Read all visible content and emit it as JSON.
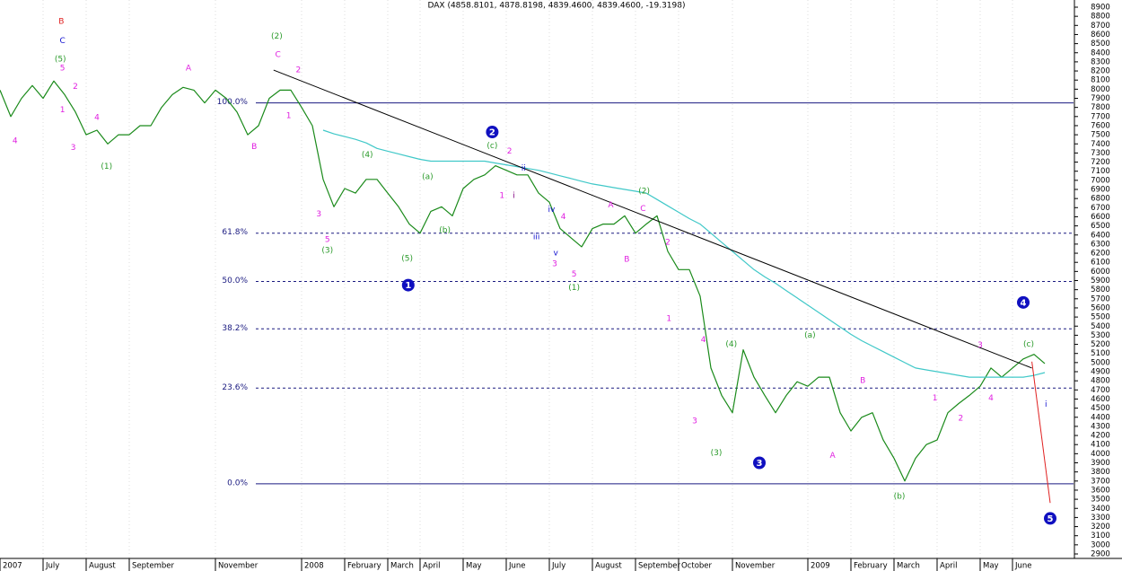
{
  "chart_data": {
    "type": "line",
    "title": "DAX (4858.8101, 4878.8198, 4839.4600, 4839.4600, -19.3198)",
    "categories": [
      "2007",
      null,
      null,
      null,
      "July",
      null,
      null,
      null,
      "August",
      null,
      null,
      null,
      "September",
      null,
      null,
      null,
      null,
      null,
      null,
      null,
      "November",
      null,
      null,
      null,
      null,
      null,
      null,
      null,
      "2008",
      null,
      null,
      null,
      "February",
      null,
      null,
      null,
      "March",
      null,
      null,
      "April",
      null,
      null,
      null,
      "May",
      null,
      null,
      null,
      "June",
      null,
      null,
      null,
      "July",
      null,
      null,
      null,
      "August",
      null,
      null,
      null,
      "September",
      null,
      null,
      null,
      "October",
      null,
      null,
      null,
      null,
      "November",
      null,
      null,
      null,
      null,
      null,
      null,
      "2009",
      null,
      null,
      null,
      "February",
      null,
      null,
      null,
      "March",
      null,
      null,
      null,
      "April",
      null,
      null,
      null,
      "May",
      null,
      null,
      "June",
      null,
      null,
      null
    ],
    "series": [
      {
        "color": "#1a8a1a",
        "values": [
          7990,
          7700,
          7900,
          8040,
          7900,
          8090,
          7940,
          7750,
          7500,
          7550,
          7400,
          7500,
          7500,
          7600,
          7600,
          7800,
          7940,
          8020,
          7990,
          7850,
          7990,
          7900,
          7750,
          7500,
          7600,
          7900,
          7990,
          7990,
          7800,
          7600,
          7010,
          6710,
          6910,
          6860,
          7010,
          7010,
          6860,
          6710,
          6520,
          6420,
          6660,
          6710,
          6610,
          6910,
          7010,
          7060,
          7160,
          7110,
          7060,
          7060,
          6860,
          6760,
          6470,
          6370,
          6270,
          6470,
          6520,
          6520,
          6610,
          6420,
          6520,
          6610,
          6220,
          6020,
          6020,
          5730,
          4940,
          4640,
          4450,
          5140,
          4840,
          4640,
          4450,
          4640,
          4790,
          4740,
          4840,
          4840,
          4450,
          4250,
          4400,
          4450,
          4150,
          3950,
          3700,
          3950,
          4100,
          4150,
          4450,
          4550,
          4640,
          4740,
          4940,
          4840,
          4940,
          5040,
          5090,
          4990
        ]
      },
      {
        "color": "#40c8c8",
        "values": [
          null,
          null,
          null,
          null,
          null,
          null,
          null,
          null,
          null,
          null,
          null,
          null,
          null,
          null,
          null,
          null,
          null,
          null,
          null,
          null,
          null,
          null,
          null,
          null,
          null,
          null,
          null,
          null,
          null,
          null,
          7550,
          7510,
          7480,
          7450,
          7410,
          7350,
          7320,
          7290,
          7260,
          7230,
          7210,
          7210,
          7210,
          7210,
          7210,
          7210,
          7190,
          7170,
          7150,
          7130,
          7110,
          7080,
          7050,
          7020,
          6990,
          6960,
          6940,
          6920,
          6900,
          6880,
          6860,
          6790,
          6720,
          6650,
          6580,
          6520,
          6420,
          6320,
          6220,
          6120,
          6020,
          5940,
          5870,
          5790,
          5710,
          5630,
          5550,
          5470,
          5390,
          5310,
          5240,
          5180,
          5120,
          5060,
          5000,
          4940,
          4920,
          4900,
          4880,
          4860,
          4840,
          4840,
          4840,
          4840,
          4840,
          4840,
          4860,
          4890
        ]
      }
    ],
    "ylim": [
      2900,
      8900
    ],
    "yticks": [
      2900,
      3000,
      3100,
      3200,
      3300,
      3400,
      3500,
      3600,
      3700,
      3800,
      3900,
      4000,
      4100,
      4200,
      4300,
      4400,
      4500,
      4600,
      4700,
      4800,
      4900,
      5000,
      5100,
      5200,
      5300,
      5400,
      5500,
      5600,
      5700,
      5800,
      5900,
      6000,
      6100,
      6200,
      6300,
      6400,
      6500,
      6600,
      6700,
      6800,
      6900,
      7000,
      7100,
      7200,
      7300,
      7400,
      7500,
      7600,
      7700,
      7800,
      7900,
      8000,
      8100,
      8200,
      8300,
      8400,
      8500,
      8600,
      8700,
      8800,
      8900
    ],
    "levels": [
      {
        "label": "100.0%",
        "value": 7850,
        "dashed": false
      },
      {
        "label": "61.8%",
        "value": 6420,
        "dashed": true
      },
      {
        "label": "50.0%",
        "value": 5890,
        "dashed": true
      },
      {
        "label": "38.2%",
        "value": 5370,
        "dashed": true
      },
      {
        "label": "23.6%",
        "value": 4720,
        "dashed": true
      },
      {
        "label": "0.0%",
        "value": 3670,
        "dashed": false
      }
    ],
    "lines": [
      {
        "color": "#000000",
        "x": [
          25.4,
          95.8
        ],
        "y": [
          8210,
          4940
        ]
      },
      {
        "color": "#e02020",
        "x": [
          95.8,
          97.5
        ],
        "y": [
          5010,
          3460
        ]
      }
    ],
    "annotations": [
      {
        "text": "B",
        "x": 5.7,
        "y": 8740,
        "color": "#e02020"
      },
      {
        "text": "C",
        "x": 5.8,
        "y": 8530,
        "color": "#1010d0"
      },
      {
        "text": "(5)",
        "x": 5.6,
        "y": 8330,
        "color": "#2a9a2a"
      },
      {
        "text": "5",
        "x": 5.8,
        "y": 8230,
        "color": "#e020e0"
      },
      {
        "text": "2",
        "x": 7.0,
        "y": 8030,
        "color": "#e020e0"
      },
      {
        "text": "1",
        "x": 5.8,
        "y": 7770,
        "color": "#e020e0"
      },
      {
        "text": "4",
        "x": 9.0,
        "y": 7690,
        "color": "#e020e0"
      },
      {
        "text": "4",
        "x": 1.4,
        "y": 7430,
        "color": "#e020e0"
      },
      {
        "text": "3",
        "x": 6.8,
        "y": 7360,
        "color": "#e020e0"
      },
      {
        "text": "(1)",
        "x": 9.9,
        "y": 7150,
        "color": "#2a9a2a"
      },
      {
        "text": "A",
        "x": 17.5,
        "y": 8230,
        "color": "#e020e0"
      },
      {
        "text": "B",
        "x": 23.6,
        "y": 7370,
        "color": "#e020e0"
      },
      {
        "text": "(2)",
        "x": 25.7,
        "y": 8580,
        "color": "#2a9a2a"
      },
      {
        "text": "C",
        "x": 25.8,
        "y": 8380,
        "color": "#e020e0"
      },
      {
        "text": "2",
        "x": 27.7,
        "y": 8210,
        "color": "#e020e0"
      },
      {
        "text": "1",
        "x": 26.8,
        "y": 7710,
        "color": "#e020e0"
      },
      {
        "text": "3",
        "x": 29.6,
        "y": 6630,
        "color": "#e020e0"
      },
      {
        "text": "5",
        "x": 30.4,
        "y": 6350,
        "color": "#e020e0"
      },
      {
        "text": "(3)",
        "x": 30.4,
        "y": 6230,
        "color": "#2a9a2a"
      },
      {
        "text": "(4)",
        "x": 34.1,
        "y": 7280,
        "color": "#2a9a2a"
      },
      {
        "text": "(5)",
        "x": 37.8,
        "y": 6140,
        "color": "#2a9a2a"
      },
      {
        "text": "(a)",
        "x": 39.7,
        "y": 7040,
        "color": "#2a9a2a"
      },
      {
        "text": "(b)",
        "x": 41.3,
        "y": 6450,
        "color": "#2a9a2a"
      },
      {
        "text": "(c)",
        "x": 45.7,
        "y": 7380,
        "color": "#2a9a2a"
      },
      {
        "text": "2",
        "x": 47.3,
        "y": 7320,
        "color": "#e020e0"
      },
      {
        "text": "1",
        "x": 46.6,
        "y": 6830,
        "color": "#e020e0"
      },
      {
        "text": "i",
        "x": 47.7,
        "y": 6830,
        "color": "#800080"
      },
      {
        "text": "ii",
        "x": 48.6,
        "y": 7130,
        "color": "#1010d0"
      },
      {
        "text": "iv",
        "x": 51.2,
        "y": 6680,
        "color": "#1010d0"
      },
      {
        "text": "iii",
        "x": 49.8,
        "y": 6380,
        "color": "#1010d0"
      },
      {
        "text": "v",
        "x": 51.6,
        "y": 6200,
        "color": "#1010d0"
      },
      {
        "text": "4",
        "x": 52.3,
        "y": 6600,
        "color": "#e020e0"
      },
      {
        "text": "3",
        "x": 51.5,
        "y": 6080,
        "color": "#e020e0"
      },
      {
        "text": "5",
        "x": 53.3,
        "y": 5970,
        "color": "#e020e0"
      },
      {
        "text": "(1)",
        "x": 53.3,
        "y": 5820,
        "color": "#2a9a2a"
      },
      {
        "text": "A",
        "x": 56.7,
        "y": 6730,
        "color": "#e020e0"
      },
      {
        "text": "B",
        "x": 58.2,
        "y": 6130,
        "color": "#e020e0"
      },
      {
        "text": "C",
        "x": 59.7,
        "y": 6690,
        "color": "#e020e0"
      },
      {
        "text": "(2)",
        "x": 59.8,
        "y": 6880,
        "color": "#2a9a2a"
      },
      {
        "text": "2",
        "x": 62.0,
        "y": 6320,
        "color": "#e020e0"
      },
      {
        "text": "1",
        "x": 62.1,
        "y": 5480,
        "color": "#e020e0"
      },
      {
        "text": "4",
        "x": 65.3,
        "y": 5250,
        "color": "#e020e0"
      },
      {
        "text": "3",
        "x": 64.5,
        "y": 4360,
        "color": "#e020e0"
      },
      {
        "text": "(4)",
        "x": 67.9,
        "y": 5200,
        "color": "#2a9a2a"
      },
      {
        "text": "(3)",
        "x": 66.5,
        "y": 4010,
        "color": "#2a9a2a"
      },
      {
        "text": "(a)",
        "x": 75.2,
        "y": 5300,
        "color": "#2a9a2a"
      },
      {
        "text": "B",
        "x": 80.1,
        "y": 4800,
        "color": "#e020e0"
      },
      {
        "text": "A",
        "x": 77.3,
        "y": 3980,
        "color": "#e020e0"
      },
      {
        "text": "(b)",
        "x": 83.5,
        "y": 3530,
        "color": "#2a9a2a"
      },
      {
        "text": "1",
        "x": 86.8,
        "y": 4610,
        "color": "#e020e0"
      },
      {
        "text": "2",
        "x": 89.2,
        "y": 4390,
        "color": "#e020e0"
      },
      {
        "text": "3",
        "x": 91.0,
        "y": 5190,
        "color": "#e020e0"
      },
      {
        "text": "4",
        "x": 92.0,
        "y": 4610,
        "color": "#e020e0"
      },
      {
        "text": "(c)",
        "x": 95.5,
        "y": 5200,
        "color": "#2a9a2a"
      },
      {
        "text": "i",
        "x": 97.1,
        "y": 4540,
        "color": "#1010d0"
      },
      {
        "text": "1",
        "x": 37.9,
        "y": 5850,
        "color": "#1010c0",
        "circled": true
      },
      {
        "text": "2",
        "x": 45.7,
        "y": 7530,
        "color": "#1010c0",
        "circled": true
      },
      {
        "text": "3",
        "x": 70.5,
        "y": 3900,
        "color": "#1010c0",
        "circled": true
      },
      {
        "text": "4",
        "x": 95.0,
        "y": 5660,
        "color": "#1010c0",
        "circled": true
      },
      {
        "text": "5",
        "x": 97.5,
        "y": 3290,
        "color": "#1010c0",
        "circled": true
      }
    ]
  }
}
